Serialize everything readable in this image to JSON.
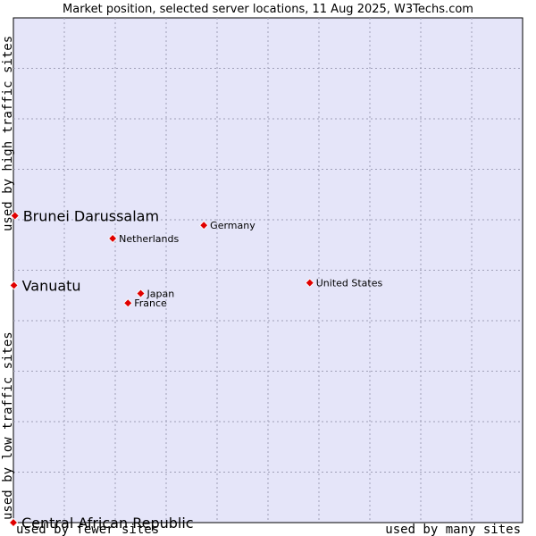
{
  "chart_data": {
    "type": "scatter",
    "title": "Market position, selected server locations, 11 Aug 2025, W3Techs.com",
    "xlabel_left": "used by fewer sites",
    "xlabel_right": "used by many sites",
    "ylabel_top": "used by high traffic sites",
    "ylabel_bottom": "used by low traffic sites",
    "xlim": [
      0,
      10
    ],
    "ylim": [
      0,
      10
    ],
    "grid": true,
    "colors": {
      "plot_bg": "#e5e5f9",
      "grid": "#a0a0b8",
      "marker": "#e00000",
      "marker_edge": "#ffffff"
    },
    "points": [
      {
        "label": "Brunei Darussalam",
        "x": 0.03,
        "y": 6.08,
        "highlight": true
      },
      {
        "label": "Vanuatu",
        "x": 0.01,
        "y": 4.7,
        "highlight": true
      },
      {
        "label": "Central African Republic",
        "x": 0.0,
        "y": 0.0,
        "highlight": true
      },
      {
        "label": "Germany",
        "x": 3.74,
        "y": 5.89,
        "highlight": false
      },
      {
        "label": "Netherlands",
        "x": 1.95,
        "y": 5.63,
        "highlight": false
      },
      {
        "label": "United States",
        "x": 5.82,
        "y": 4.75,
        "highlight": false
      },
      {
        "label": "Japan",
        "x": 2.5,
        "y": 4.54,
        "highlight": false
      },
      {
        "label": "France",
        "x": 2.25,
        "y": 4.35,
        "highlight": false
      }
    ]
  }
}
